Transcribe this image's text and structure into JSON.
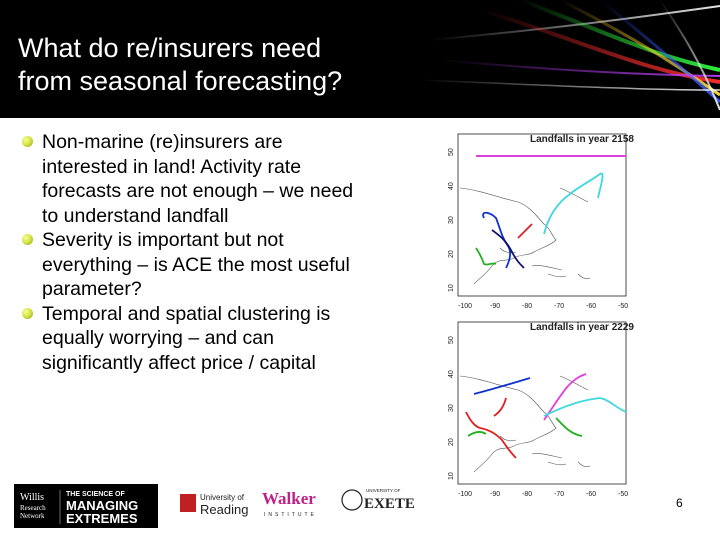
{
  "slide": {
    "title_line1": "What do re/insurers need",
    "title_line2": "from seasonal forecasting?",
    "bullets": [
      "Non-marine (re)insurers are interested in land! Activity rate forecasts are not enough – we need to understand landfall",
      "Severity is important but not everything – is ACE the most useful parameter?",
      "Temporal and spatial clustering is equally worrying – and can significantly affect price / capital"
    ],
    "page_number": "6"
  },
  "maps": [
    {
      "title": "Landfalls in year 2158",
      "x_ticks": [
        "-100",
        "-90",
        "-80",
        "-70",
        "-60",
        "-50"
      ],
      "y_ticks": [
        "10",
        "20",
        "30",
        "40",
        "50"
      ]
    },
    {
      "title": "Landfalls in year 2229",
      "x_ticks": [
        "-100",
        "-90",
        "-80",
        "-70",
        "-60",
        "-50"
      ],
      "y_ticks": [
        "10",
        "20",
        "30",
        "40",
        "50"
      ]
    }
  ],
  "logos": {
    "willis_line1": "Willis",
    "willis_line2": "Research",
    "willis_line3": "Network",
    "managing_line1": "THE SCIENCE OF",
    "managing_line2": "MANAGING",
    "managing_line3": "EXTREMES",
    "reading_line1": "University of",
    "reading_line2": "Reading",
    "walker_line1": "Walker",
    "walker_line2": "INSTITUTE",
    "exeter_small": "UNIVERSITY OF",
    "exeter_main": "EXETER"
  },
  "colors": {
    "bullet": "#d6e64a",
    "track_magenta": "#e040e0",
    "track_cyan": "#40d8e0",
    "track_blue": "#1030d0",
    "track_green": "#20b020",
    "track_red": "#e02020",
    "track_navy": "#101070"
  }
}
